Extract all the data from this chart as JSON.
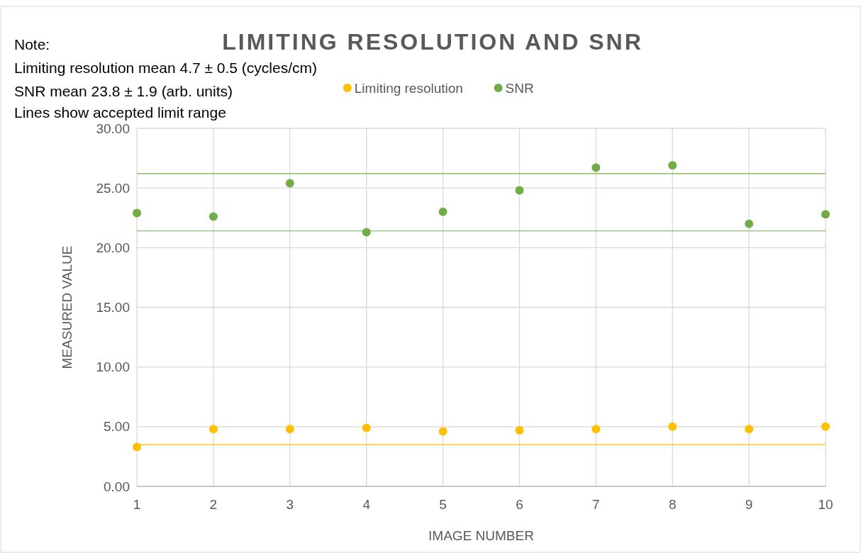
{
  "chart_data": {
    "type": "scatter",
    "title": "LIMITING RESOLUTION AND SNR",
    "xlabel": "IMAGE NUMBER",
    "ylabel": "MEASURED VALUE",
    "annotations": [
      "Note:",
      "Limiting resolution mean 4.7 ± 0.5 (cycles/cm)",
      "SNR mean 23.8 ± 1.9 (arb. units)",
      "Lines show accepted limit range"
    ],
    "x": [
      1,
      2,
      3,
      4,
      5,
      6,
      7,
      8,
      9,
      10
    ],
    "series": [
      {
        "name": "Limiting resolution",
        "color": "#ffc000",
        "values": [
          3.3,
          4.8,
          4.8,
          4.9,
          4.6,
          4.7,
          4.8,
          5.0,
          4.8,
          5.0
        ]
      },
      {
        "name": "SNR",
        "color": "#70ad47",
        "values": [
          22.9,
          22.6,
          25.4,
          21.3,
          23.0,
          24.8,
          26.7,
          26.9,
          22.0,
          22.8
        ]
      }
    ],
    "ref_lines": [
      {
        "axis": "y",
        "value": 26.2,
        "color": "#70ad47"
      },
      {
        "axis": "y",
        "value": 21.4,
        "color": "#70ad47"
      },
      {
        "axis": "y",
        "value": 3.5,
        "color": "#ffc000"
      }
    ],
    "xlim": [
      1,
      10
    ],
    "xticks": [
      1,
      2,
      3,
      4,
      5,
      6,
      7,
      8,
      9,
      10
    ],
    "ylim": [
      0,
      30
    ],
    "yticks": [
      {
        "value": 0,
        "label": "0.00"
      },
      {
        "value": 5,
        "label": "5.00"
      },
      {
        "value": 10,
        "label": "10.00"
      },
      {
        "value": 15,
        "label": "15.00"
      },
      {
        "value": 20,
        "label": "20.00"
      },
      {
        "value": 25,
        "label": "25.00"
      },
      {
        "value": 30,
        "label": "30.00"
      }
    ],
    "grid": true,
    "legend": "top",
    "marker": "circle"
  }
}
